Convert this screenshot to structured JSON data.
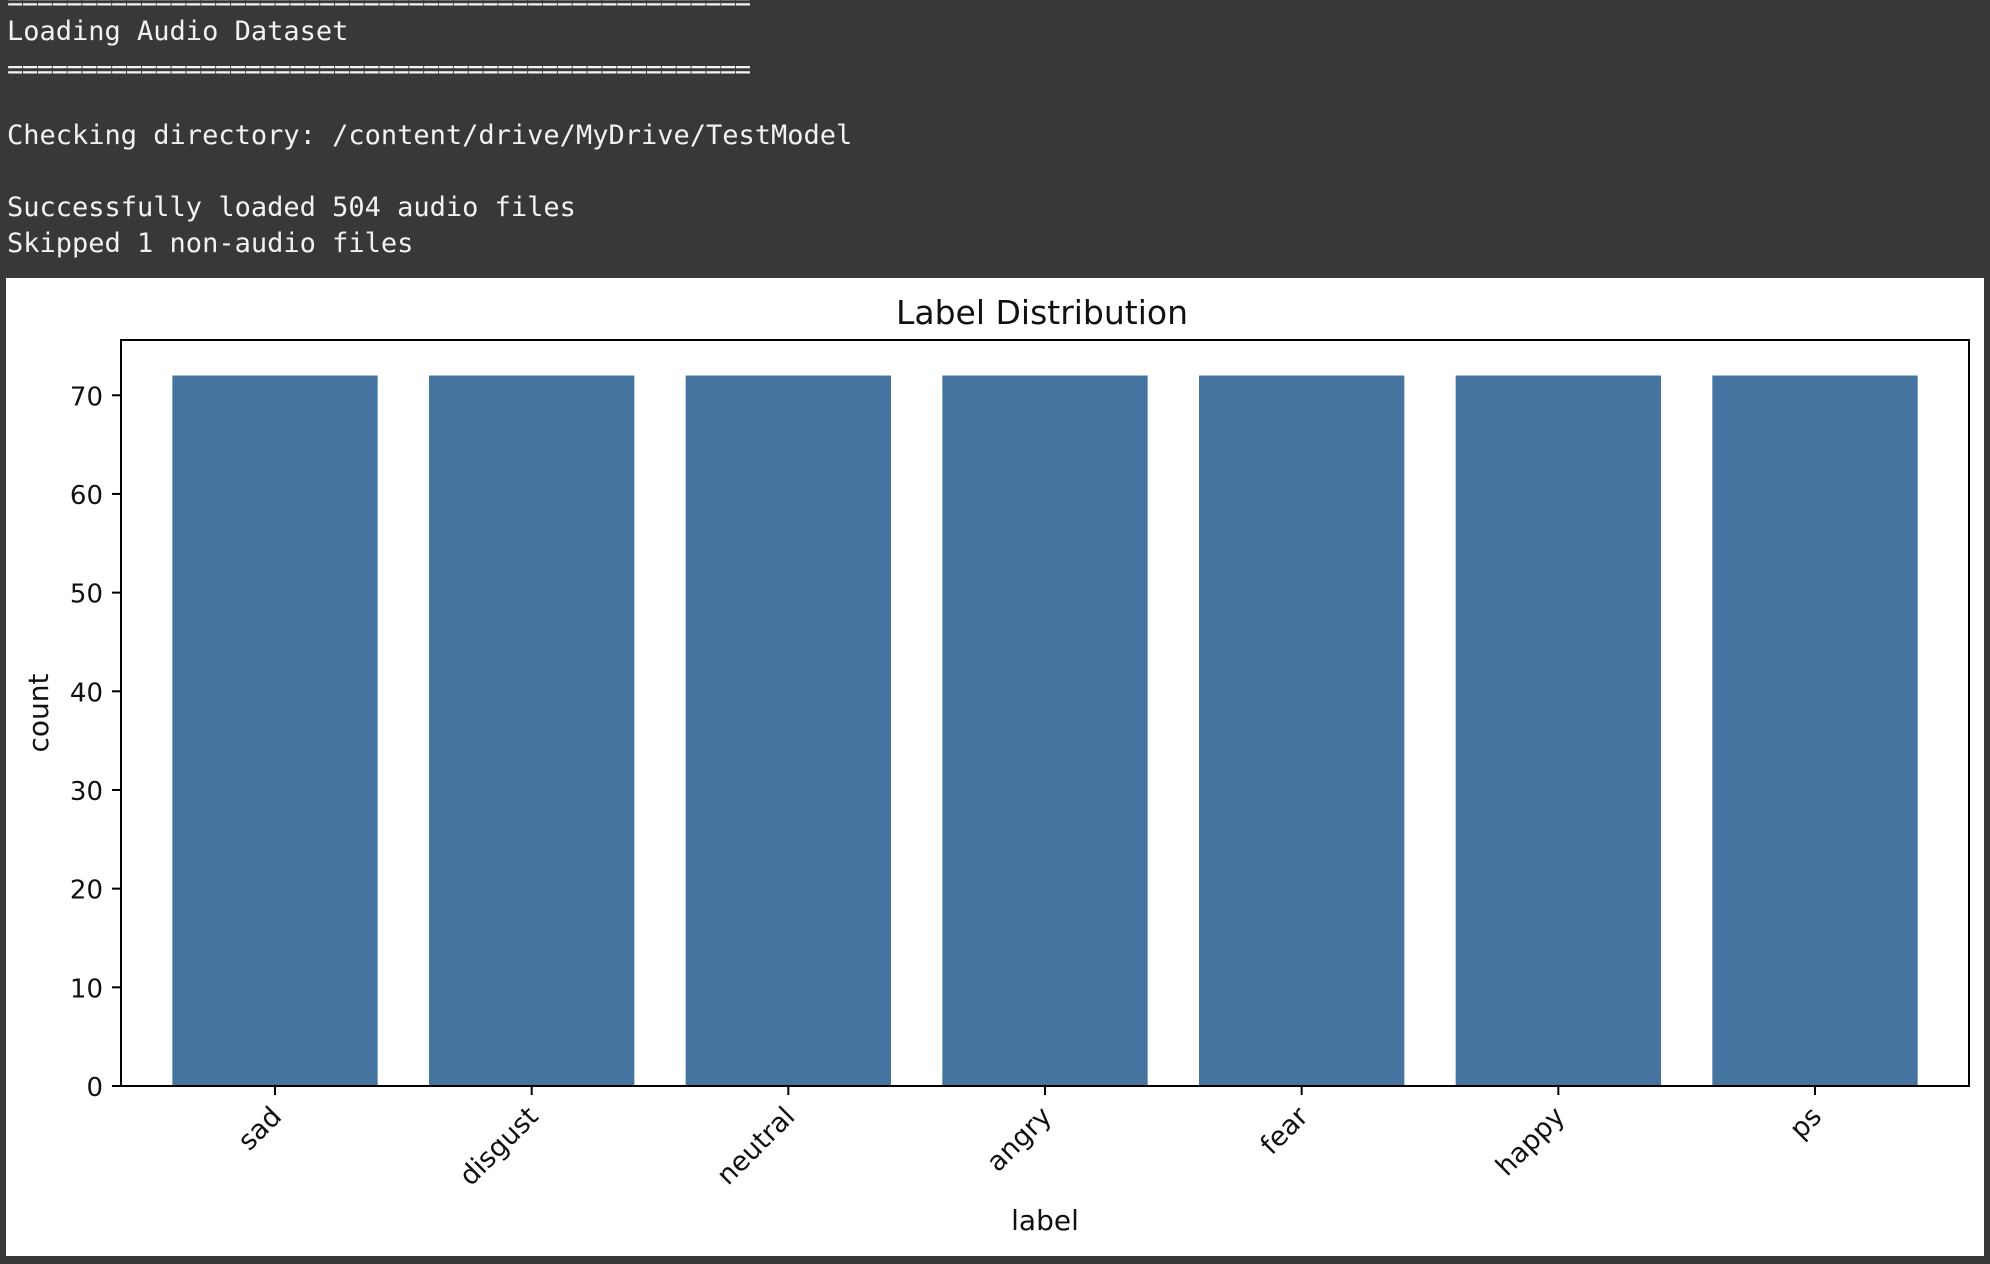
{
  "console": {
    "rule": "==================================================",
    "heading": "Loading Audio Dataset",
    "dir_line": "Checking directory: /content/drive/MyDrive/TestModel",
    "loaded_line": "Successfully loaded 504 audio files",
    "skipped_line": "Skipped 1 non-audio files"
  },
  "chart_data": {
    "type": "bar",
    "title": "Label Distribution",
    "xlabel": "label",
    "ylabel": "count",
    "categories": [
      "sad",
      "disgust",
      "neutral",
      "angry",
      "fear",
      "happy",
      "ps"
    ],
    "values": [
      72,
      72,
      72,
      72,
      72,
      72,
      72
    ],
    "ylim": [
      0,
      75.6
    ],
    "yticks": [
      0,
      10,
      20,
      30,
      40,
      50,
      60,
      70
    ],
    "grid": false,
    "legend": "none",
    "bar_color": "#4574a1"
  }
}
